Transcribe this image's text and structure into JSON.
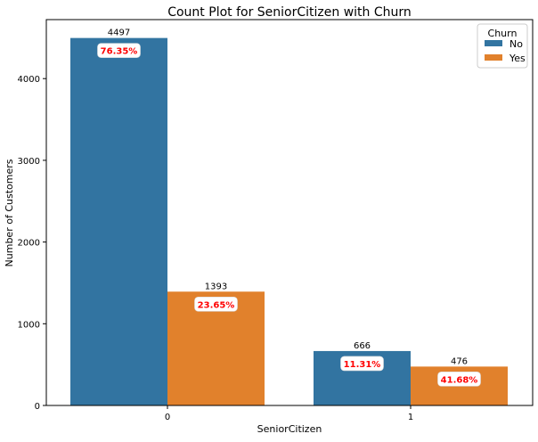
{
  "chart_data": {
    "type": "bar",
    "title": "Count Plot for SeniorCitizen with Churn",
    "xlabel": "SeniorCitizen",
    "ylabel": "Number of Customers",
    "categories": [
      "0",
      "1"
    ],
    "ylim": [
      0,
      4722
    ],
    "yticks": [
      0,
      1000,
      2000,
      3000,
      4000
    ],
    "grid": false,
    "legend": {
      "title": "Churn",
      "placement": "top-right"
    },
    "series": [
      {
        "name": "No",
        "color": "#3274a1",
        "values": [
          4497,
          666
        ],
        "percent_labels": [
          "76.35%",
          "11.31%"
        ]
      },
      {
        "name": "Yes",
        "color": "#e1812c",
        "values": [
          1393,
          476
        ],
        "percent_labels": [
          "23.65%",
          "41.68%"
        ]
      }
    ],
    "percent_label_color": "#ff0000"
  }
}
